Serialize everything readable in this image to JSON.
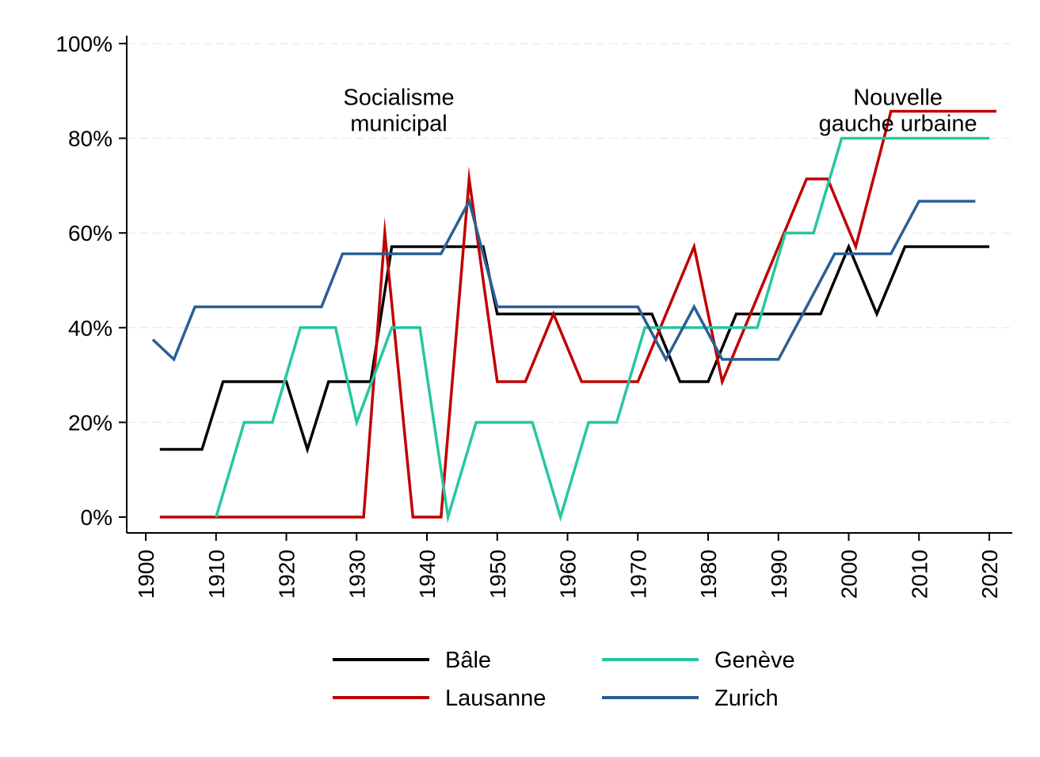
{
  "chart_data": {
    "type": "line",
    "title": "",
    "xlabel": "",
    "ylabel": "",
    "xlim": [
      1897,
      2023
    ],
    "ylim": [
      0,
      100
    ],
    "x_ticks": [
      "1900",
      "1910",
      "1920",
      "1930",
      "1940",
      "1950",
      "1960",
      "1970",
      "1980",
      "1990",
      "2000",
      "2010",
      "2020"
    ],
    "y_ticks": [
      "0%",
      "20%",
      "40%",
      "60%",
      "80%",
      "100%"
    ],
    "grid": true,
    "legend_position": "bottom",
    "annotations": [
      {
        "text": [
          "Socialisme",
          "municipal"
        ],
        "x": 1936,
        "y": 87
      },
      {
        "text": [
          "Nouvelle",
          "gauche urbaine"
        ],
        "x": 2007,
        "y": 87
      }
    ],
    "series": [
      {
        "name": "Bâle",
        "color": "#000000",
        "points": [
          [
            1902,
            14.3
          ],
          [
            1908,
            14.3
          ],
          [
            1911,
            28.6
          ],
          [
            1920,
            28.6
          ],
          [
            1923,
            14.3
          ],
          [
            1926,
            28.6
          ],
          [
            1932,
            28.6
          ],
          [
            1935,
            57.1
          ],
          [
            1948,
            57.1
          ],
          [
            1950,
            42.9
          ],
          [
            1972,
            42.9
          ],
          [
            1976,
            28.6
          ],
          [
            1980,
            28.6
          ],
          [
            1984,
            42.9
          ],
          [
            1996,
            42.9
          ],
          [
            2000,
            57.1
          ],
          [
            2004,
            42.9
          ],
          [
            2008,
            57.1
          ],
          [
            2020,
            57.1
          ]
        ]
      },
      {
        "name": "Lausanne",
        "color": "#c00000",
        "points": [
          [
            1902,
            0
          ],
          [
            1931,
            0
          ],
          [
            1934,
            60
          ],
          [
            1938,
            0
          ],
          [
            1942,
            0
          ],
          [
            1946,
            71.4
          ],
          [
            1950,
            28.6
          ],
          [
            1954,
            28.6
          ],
          [
            1958,
            42.9
          ],
          [
            1962,
            28.6
          ],
          [
            1970,
            28.6
          ],
          [
            1978,
            57.1
          ],
          [
            1982,
            28.6
          ],
          [
            1994,
            71.4
          ],
          [
            1997,
            71.4
          ],
          [
            2001,
            57.1
          ],
          [
            2006,
            85.7
          ],
          [
            2021,
            85.7
          ]
        ]
      },
      {
        "name": "Genève",
        "color": "#26c6a0",
        "points": [
          [
            1910,
            0
          ],
          [
            1914,
            20
          ],
          [
            1918,
            20
          ],
          [
            1922,
            40
          ],
          [
            1927,
            40
          ],
          [
            1930,
            20
          ],
          [
            1935,
            40
          ],
          [
            1939,
            40
          ],
          [
            1943,
            0
          ],
          [
            1947,
            20
          ],
          [
            1955,
            20
          ],
          [
            1959,
            0
          ],
          [
            1963,
            20
          ],
          [
            1967,
            20
          ],
          [
            1971,
            40
          ],
          [
            1987,
            40
          ],
          [
            1991,
            60
          ],
          [
            1995,
            60
          ],
          [
            1999,
            80
          ],
          [
            2020,
            80
          ]
        ]
      },
      {
        "name": "Zurich",
        "color": "#2a5f95",
        "points": [
          [
            1901,
            37.5
          ],
          [
            1904,
            33.3
          ],
          [
            1907,
            44.4
          ],
          [
            1925,
            44.4
          ],
          [
            1928,
            55.6
          ],
          [
            1942,
            55.6
          ],
          [
            1946,
            66.7
          ],
          [
            1950,
            44.4
          ],
          [
            1970,
            44.4
          ],
          [
            1974,
            33.3
          ],
          [
            1978,
            44.4
          ],
          [
            1982,
            33.3
          ],
          [
            1990,
            33.3
          ],
          [
            1994,
            44.4
          ],
          [
            1998,
            55.6
          ],
          [
            2006,
            55.6
          ],
          [
            2010,
            66.7
          ],
          [
            2018,
            66.7
          ]
        ]
      }
    ]
  }
}
